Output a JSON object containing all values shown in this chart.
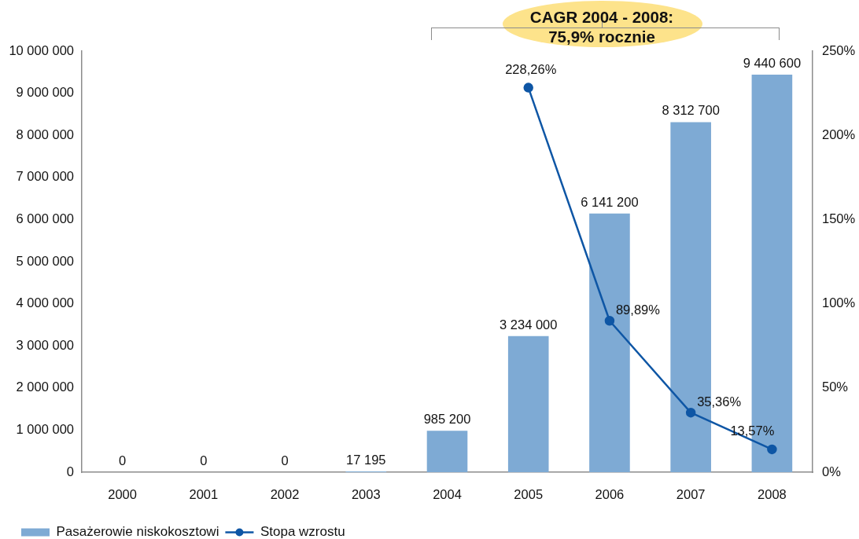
{
  "chart_data": {
    "type": "bar",
    "categories": [
      "2000",
      "2001",
      "2002",
      "2003",
      "2004",
      "2005",
      "2006",
      "2007",
      "2008"
    ],
    "series": [
      {
        "name": "Pasażerowie niskokosztowi",
        "type": "bar",
        "color": "#7eaad4",
        "values": [
          0,
          0,
          0,
          17195,
          985200,
          3234000,
          6141200,
          8312700,
          9440600
        ],
        "value_labels": [
          "0",
          "0",
          "0",
          "17 195",
          "985 200",
          "3 234 000",
          "6 141 200",
          "8 312 700",
          "9 440 600"
        ]
      },
      {
        "name": "Stopa wzrostu",
        "type": "line",
        "axis": "y2",
        "color": "#0e56a5",
        "values": [
          null,
          null,
          null,
          null,
          null,
          228.26,
          89.89,
          35.36,
          13.57
        ],
        "value_labels": [
          null,
          null,
          null,
          null,
          null,
          "228,26%",
          "89,89%",
          "35,36%",
          "13,57%"
        ]
      }
    ],
    "ylim": [
      0,
      10000000
    ],
    "yticks": [
      0,
      {
        "value": 1000000,
        "label": "1 000 000"
      },
      {
        "value": 2000000,
        "label": "2 000 000"
      },
      {
        "value": 3000000,
        "label": "3 000 000"
      },
      {
        "value": 4000000,
        "label": "4 000 000"
      },
      {
        "value": 5000000,
        "label": "5 000 000"
      },
      {
        "value": 6000000,
        "label": "6 000 000"
      },
      {
        "value": 7000000,
        "label": "7 000 000"
      },
      {
        "value": 8000000,
        "label": "8 000 000"
      },
      {
        "value": 9000000,
        "label": "9 000 000"
      },
      {
        "value": 10000000,
        "label": "10 000 000"
      }
    ],
    "y2lim": [
      0,
      250
    ],
    "y2ticks": [
      {
        "value": 0,
        "label": "0%"
      },
      {
        "value": 50,
        "label": "50%"
      },
      {
        "value": 100,
        "label": "100%"
      },
      {
        "value": 150,
        "label": "150%"
      },
      {
        "value": 200,
        "label": "200%"
      },
      {
        "value": 250,
        "label": "250%"
      }
    ],
    "grid": false,
    "legend": "bottom left",
    "marker": "circle",
    "line_style": "solid",
    "annotations": [
      "CAGR 2004 - 2008: 75,9% rocznie"
    ]
  }
}
